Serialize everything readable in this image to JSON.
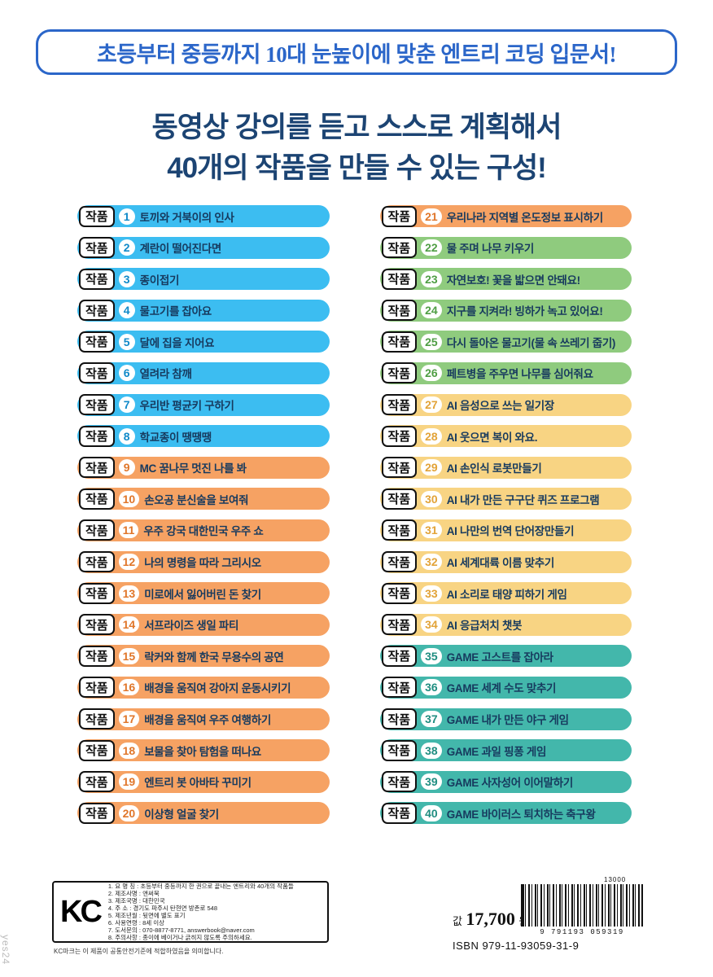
{
  "banner": {
    "text": "초등부터 중등까지 10대 눈높이에 맞춘 엔트리 코딩 입문서!"
  },
  "heading": {
    "line1": "동영상 강의를 듣고 스스로 계획해서",
    "line2": "40개의 작품을 만들 수 있는 구성!"
  },
  "work_label": "작품",
  "colors": {
    "blue": "#3cbdf1",
    "orange": "#f6a263",
    "green": "#8fcb7e",
    "yellow": "#f8d483",
    "teal": "#43b7ab",
    "banner_blue": "#2b66c9",
    "heading_navy": "#1c4473"
  },
  "items_left": [
    {
      "num": "1",
      "title": "토끼와 거북이의 인사",
      "color": "blue"
    },
    {
      "num": "2",
      "title": "계란이 떨어진다면",
      "color": "blue"
    },
    {
      "num": "3",
      "title": "종이접기",
      "color": "blue"
    },
    {
      "num": "4",
      "title": "물고기를 잡아요",
      "color": "blue"
    },
    {
      "num": "5",
      "title": "달에 집을 지어요",
      "color": "blue"
    },
    {
      "num": "6",
      "title": "열려라 참깨",
      "color": "blue"
    },
    {
      "num": "7",
      "title": "우리반 평균키 구하기",
      "color": "blue"
    },
    {
      "num": "8",
      "title": "학교종이 땡땡땡",
      "color": "blue"
    },
    {
      "num": "9",
      "title": "MC 꿈나무 멋진 나를 봐",
      "color": "orange"
    },
    {
      "num": "10",
      "title": "손오공 분신술을 보여줘",
      "color": "orange"
    },
    {
      "num": "11",
      "title": "우주 강국 대한민국 우주 쇼",
      "color": "orange"
    },
    {
      "num": "12",
      "title": "나의 명령을 따라 그리시오",
      "color": "orange"
    },
    {
      "num": "13",
      "title": "미로에서 잃어버린 돈 찾기",
      "color": "orange"
    },
    {
      "num": "14",
      "title": "서프라이즈 생일 파티",
      "color": "orange"
    },
    {
      "num": "15",
      "title": "락커와 함께 한국 무용수의 공연",
      "color": "orange"
    },
    {
      "num": "16",
      "title": "배경을 움직여 강아지 운동시키기",
      "color": "orange"
    },
    {
      "num": "17",
      "title": "배경을 움직여 우주 여행하기",
      "color": "orange"
    },
    {
      "num": "18",
      "title": "보물을 찾아 탐험을 떠나요",
      "color": "orange"
    },
    {
      "num": "19",
      "title": "엔트리 봇 아바타 꾸미기",
      "color": "orange"
    },
    {
      "num": "20",
      "title": "이상형 얼굴 찾기",
      "color": "orange"
    }
  ],
  "items_right": [
    {
      "num": "21",
      "title": "우리나라 지역별 온도정보 표시하기",
      "color": "orange"
    },
    {
      "num": "22",
      "title": "물 주며 나무 키우기",
      "color": "green"
    },
    {
      "num": "23",
      "title": "자연보호! 꽃을 밟으면 안돼요!",
      "color": "green"
    },
    {
      "num": "24",
      "title": "지구를 지켜라! 빙하가 녹고 있어요!",
      "color": "green"
    },
    {
      "num": "25",
      "title": "다시 돌아온 물고기(물 속 쓰레기 줍기)",
      "color": "green"
    },
    {
      "num": "26",
      "title": "페트병을 주우면 나무를 심어줘요",
      "color": "green"
    },
    {
      "num": "27",
      "title": "AI 음성으로 쓰는 일기장",
      "color": "yellow"
    },
    {
      "num": "28",
      "title": "AI 웃으면 복이 와요.",
      "color": "yellow"
    },
    {
      "num": "29",
      "title": "AI 손인식 로봇만들기",
      "color": "yellow"
    },
    {
      "num": "30",
      "title": "AI 내가 만든 구구단 퀴즈 프로그램",
      "color": "yellow"
    },
    {
      "num": "31",
      "title": "AI 나만의 번역 단어장만들기",
      "color": "yellow"
    },
    {
      "num": "32",
      "title": "AI 세계대륙 이름 맞추기",
      "color": "yellow"
    },
    {
      "num": "33",
      "title": "AI 소리로 태양 피하기 게임",
      "color": "yellow"
    },
    {
      "num": "34",
      "title": "AI 응급처치 챗봇",
      "color": "yellow"
    },
    {
      "num": "35",
      "title": "GAME 고스트를 잡아라",
      "color": "teal"
    },
    {
      "num": "36",
      "title": "GAME 세계 수도 맞추기",
      "color": "teal"
    },
    {
      "num": "37",
      "title": "GAME 내가 만든 야구 게임",
      "color": "teal"
    },
    {
      "num": "38",
      "title": "GAME 과일 핑퐁 게임",
      "color": "teal"
    },
    {
      "num": "39",
      "title": "GAME 사자성어 이어말하기",
      "color": "teal"
    },
    {
      "num": "40",
      "title": "GAME 바이러스 퇴치하는 축구왕",
      "color": "teal"
    }
  ],
  "footer": {
    "kc_logo": "KC",
    "kc_lines": [
      "1. 요 명 칭 : 초등부터 중등까지 한 권으로 끝내는 엔트리와 40개의 작품들",
      "2. 제조사명 : 앤써북",
      "3. 제조국명 : 대한민국",
      "4. 주    소 : 경기도 파주시 탄현면 방촌로 548",
      "5. 제조년월 : 뒷면에 별도 표기",
      "6. 사용연령 : 8세 이상",
      "7. 도서문의 : 070-8877-8771, answerbook@naver.com",
      "8. 주의사항 : 종이에 베이거나 긁히지 않도록 주의하세요."
    ],
    "kc_note": "KC마크는 이 제품이 공통안전기준에 적합하였음을 의미합니다.",
    "price_label": "값",
    "price_value": "17,700",
    "price_unit": "원",
    "isbn": "ISBN 979-11-93059-31-9",
    "barcode_top": "13000",
    "barcode_digits": "9 791193 059319"
  },
  "watermark": "yes24"
}
